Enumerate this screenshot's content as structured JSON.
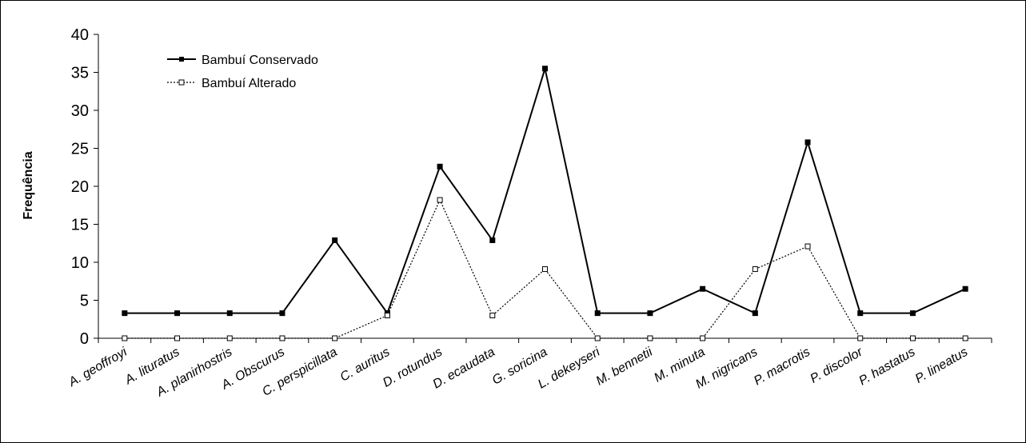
{
  "chart_data": {
    "type": "line",
    "title": "",
    "xlabel": "",
    "ylabel": "Frequência",
    "ylim": [
      0,
      40
    ],
    "yticks": [
      0,
      5,
      10,
      15,
      20,
      25,
      30,
      35,
      40
    ],
    "grid": false,
    "legend_position": "top-left",
    "categories": [
      "A. geoffroyi",
      "A. lituratus",
      "A. planirhostris",
      "A. Obscurus",
      "C. perspicillata",
      "C. auritus",
      "D. rotundus",
      "D. ecaudata",
      "G. soricina",
      "L. dekeyseri",
      "M. bennetii",
      "M. minuta",
      "M. nigricans",
      "P. macrotis",
      "P. discolor",
      "P. hastatus",
      "P. lineatus"
    ],
    "series": [
      {
        "name": "Bambuí Conservado",
        "style": "solid",
        "marker": "filled-square",
        "color": "#000000",
        "values": [
          3.3,
          3.3,
          3.3,
          3.3,
          12.9,
          3.3,
          22.6,
          12.9,
          35.5,
          3.3,
          3.3,
          6.5,
          3.3,
          25.8,
          3.3,
          3.3,
          6.5
        ]
      },
      {
        "name": "Bambuí Alterado",
        "style": "dotted",
        "marker": "open-square",
        "color": "#000000",
        "values": [
          0,
          0,
          0,
          0,
          0,
          3.0,
          18.2,
          3.0,
          9.1,
          0,
          0,
          0,
          9.1,
          12.1,
          0,
          0,
          0
        ]
      }
    ]
  }
}
